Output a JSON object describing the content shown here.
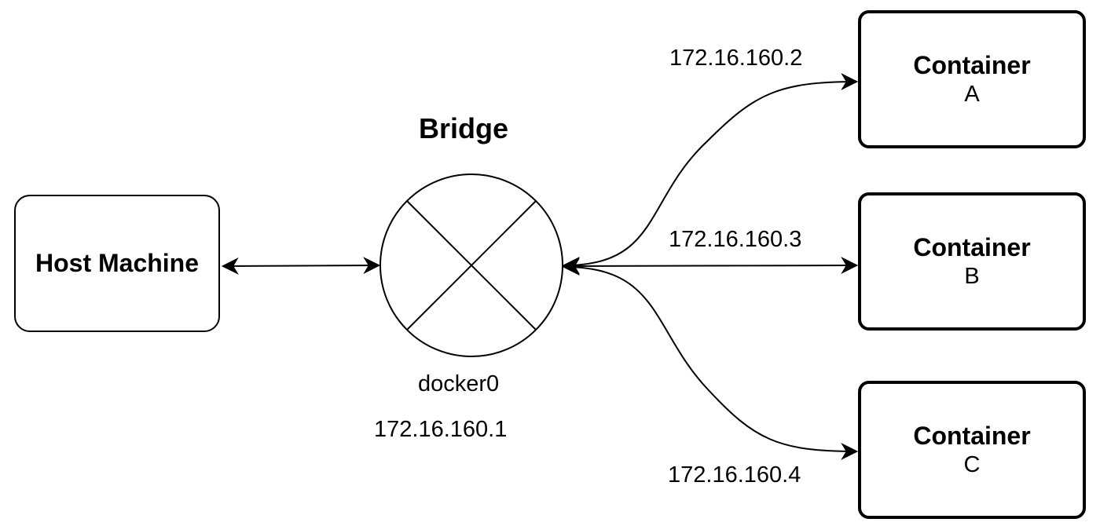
{
  "host": {
    "label": "Host Machine"
  },
  "bridge": {
    "title": "Bridge",
    "interface": "docker0",
    "ip": "172.16.160.1"
  },
  "containers": [
    {
      "title": "Container",
      "letter": "A",
      "ip": "172.16.160.2"
    },
    {
      "title": "Container",
      "letter": "B",
      "ip": "172.16.160.3"
    },
    {
      "title": "Container",
      "letter": "C",
      "ip": "172.16.160.4"
    }
  ],
  "colors": {
    "stroke": "#000000",
    "background": "#ffffff"
  }
}
